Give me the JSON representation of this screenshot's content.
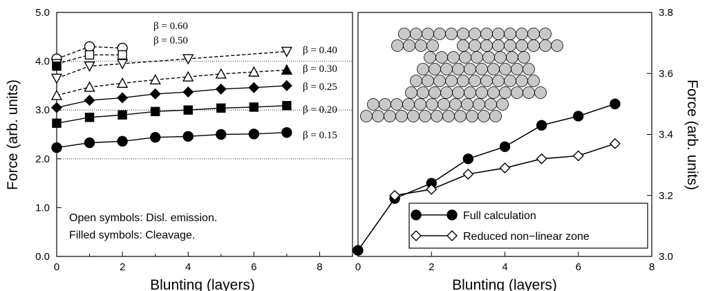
{
  "chart_data": [
    {
      "type": "line",
      "xlabel": "Blunting (layers)",
      "ylabel": "Force (arb. units)",
      "xlim": [
        0,
        9
      ],
      "ylim": [
        0,
        5
      ],
      "xticks": [
        "0",
        "2",
        "4",
        "6",
        "8"
      ],
      "yticks": [
        "0.0",
        "1.0",
        "2.0",
        "3.0",
        "4.0",
        "5.0"
      ],
      "reference_lines_y": [
        2.0,
        3.0,
        4.0
      ],
      "notes": [
        "Open symbols: Disl. emission.",
        "Filled symbols: Cleavage."
      ],
      "series": [
        {
          "name": "β = 0.60",
          "marker": "circle",
          "filled": false,
          "dashed": true,
          "x": [
            0,
            1,
            2
          ],
          "y": [
            4.05,
            4.3,
            4.27
          ]
        },
        {
          "name": "β = 0.50",
          "marker": "square",
          "filled": false,
          "dashed": true,
          "x": [
            0,
            1,
            2
          ],
          "y": [
            3.95,
            4.13,
            4.13
          ]
        },
        {
          "name": "β = 0.40",
          "marker": "triangle-down",
          "filled": false,
          "dashed": true,
          "x": [
            0,
            1,
            2,
            4,
            7
          ],
          "y": [
            3.65,
            3.9,
            3.95,
            4.05,
            4.2
          ]
        },
        {
          "name": "β = 0.30",
          "marker": "triangle-up",
          "filled": false,
          "dashed": true,
          "x": [
            0,
            1,
            2,
            3,
            4,
            5,
            6,
            7
          ],
          "y": [
            3.3,
            3.47,
            3.55,
            3.62,
            3.68,
            3.74,
            3.78,
            3.82
          ]
        },
        {
          "name": "β = 0.25",
          "marker": "diamond",
          "filled": true,
          "dashed": false,
          "x": [
            0,
            1,
            2,
            3,
            4,
            5,
            6,
            7
          ],
          "y": [
            3.05,
            3.2,
            3.25,
            3.33,
            3.37,
            3.43,
            3.46,
            3.5
          ]
        },
        {
          "name": "β = 0.20",
          "marker": "square",
          "filled": true,
          "dashed": false,
          "x": [
            0,
            1,
            2,
            3,
            4,
            5,
            6,
            7
          ],
          "y": [
            2.73,
            2.85,
            2.9,
            2.97,
            3.0,
            3.04,
            3.06,
            3.09
          ]
        },
        {
          "name": "β = 0.15",
          "marker": "circle",
          "filled": true,
          "dashed": false,
          "x": [
            0,
            1,
            2,
            3,
            4,
            5,
            6,
            7
          ],
          "y": [
            2.23,
            2.33,
            2.36,
            2.44,
            2.46,
            2.5,
            2.51,
            2.54
          ]
        }
      ],
      "extra_points": [
        {
          "marker": "triangle-up",
          "filled": true,
          "x": 7,
          "y": 3.82
        },
        {
          "marker": "square",
          "filled": true,
          "x": 0,
          "y": 3.9
        }
      ]
    },
    {
      "type": "line",
      "xlabel": "Blunting (layers)",
      "ylabel": "Force (arb. units)",
      "xlim": [
        0,
        8
      ],
      "ylim": [
        3.0,
        3.8
      ],
      "xticks": [
        "0",
        "2",
        "4",
        "6",
        "8"
      ],
      "yticks": [
        "3.0",
        "3.2",
        "3.4",
        "3.6",
        "3.8"
      ],
      "legend_position": "bottom-right",
      "series": [
        {
          "name": "Full calculation",
          "marker": "circle",
          "filled": true,
          "x": [
            0,
            1,
            2,
            3,
            4,
            5,
            6,
            7
          ],
          "y": [
            3.02,
            3.19,
            3.24,
            3.32,
            3.36,
            3.43,
            3.46,
            3.5
          ]
        },
        {
          "name": "Reduced non−linear zone",
          "marker": "diamond",
          "filled": false,
          "x": [
            1,
            2,
            3,
            4,
            5,
            6,
            7
          ],
          "y": [
            3.2,
            3.22,
            3.27,
            3.29,
            3.32,
            3.33,
            3.37
          ]
        }
      ],
      "inset": "crack-tip atom arrangement (grey spheres)"
    }
  ]
}
